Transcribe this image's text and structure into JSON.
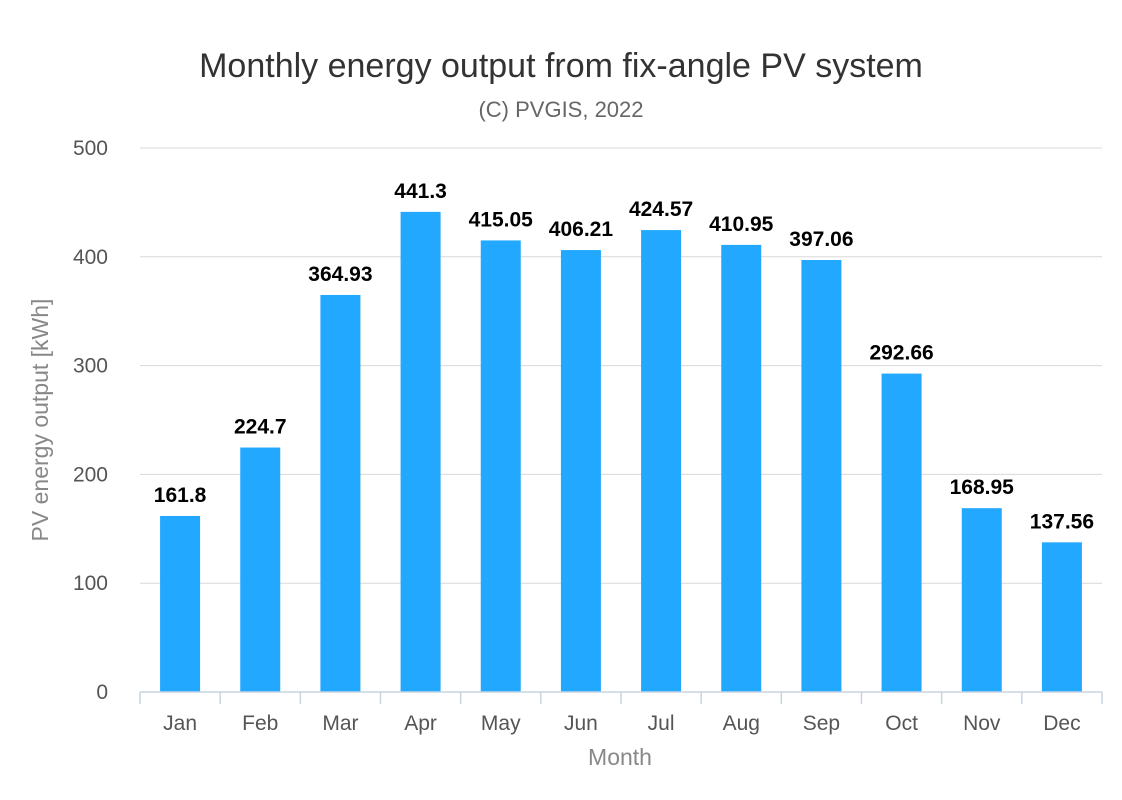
{
  "chart_data": {
    "type": "bar",
    "title": "Monthly energy output from fix-angle PV system",
    "subtitle": "(C) PVGIS, 2022",
    "xlabel": "Month",
    "ylabel": "PV energy output [kWh]",
    "categories": [
      "Jan",
      "Feb",
      "Mar",
      "Apr",
      "May",
      "Jun",
      "Jul",
      "Aug",
      "Sep",
      "Oct",
      "Nov",
      "Dec"
    ],
    "values": [
      161.8,
      224.7,
      364.93,
      441.3,
      415.05,
      406.21,
      424.57,
      410.95,
      397.06,
      292.66,
      168.95,
      137.56
    ],
    "data_labels": [
      "161.8",
      "224.7",
      "364.93",
      "441.3",
      "415.05",
      "406.21",
      "424.57",
      "410.95",
      "397.06",
      "292.66",
      "168.95",
      "137.56"
    ],
    "y_ticks": [
      "0",
      "100",
      "200",
      "300",
      "400",
      "500"
    ],
    "ylim": [
      0,
      500
    ],
    "grid": true,
    "legend": "none",
    "bar_color": "#22a8ff"
  }
}
